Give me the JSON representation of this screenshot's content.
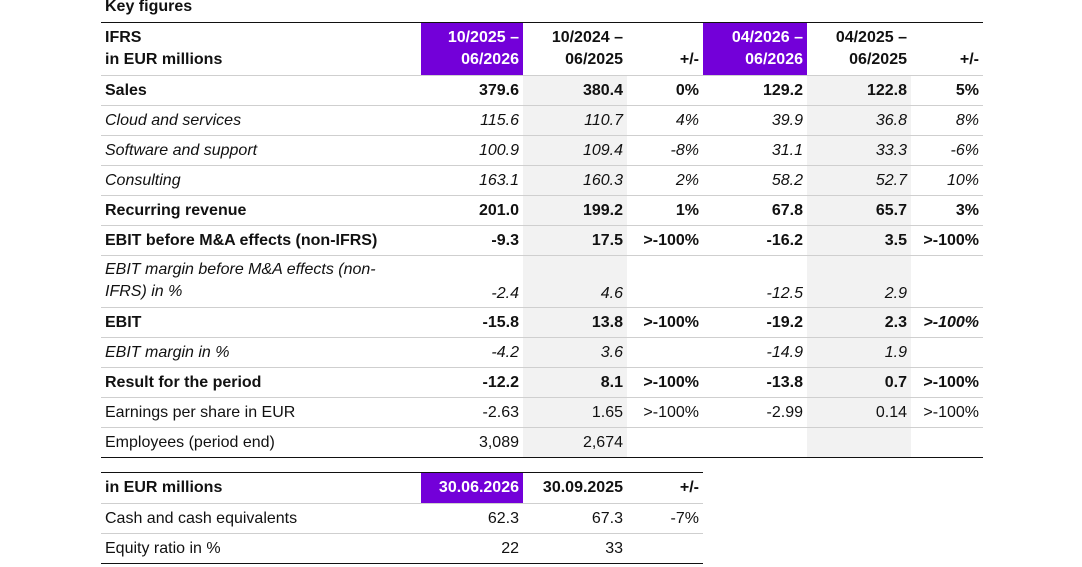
{
  "title": "Key figures",
  "key_figures": {
    "header": {
      "label_line1": "IFRS",
      "label_line2": "in EUR millions",
      "col1_line1": "10/2025 –",
      "col1_line2": "06/2026",
      "col2_line1": "10/2024 –",
      "col2_line2": "06/2025",
      "col3": "+/-",
      "col4_line1": "04/2026 –",
      "col4_line2": "06/2026",
      "col5_line1": "04/2025 –",
      "col5_line2": "06/2025",
      "col6": "+/-"
    },
    "rows": [
      {
        "label": "Sales",
        "v": [
          "379.6",
          "380.4",
          "0%",
          "129.2",
          "122.8",
          "5%"
        ]
      },
      {
        "label": "Cloud and services",
        "v": [
          "115.6",
          "110.7",
          "4%",
          "39.9",
          "36.8",
          "8%"
        ]
      },
      {
        "label": "Software and support",
        "v": [
          "100.9",
          "109.4",
          "-8%",
          "31.1",
          "33.3",
          "-6%"
        ]
      },
      {
        "label": "Consulting",
        "v": [
          "163.1",
          "160.3",
          "2%",
          "58.2",
          "52.7",
          "10%"
        ]
      },
      {
        "label": "Recurring revenue",
        "v": [
          "201.0",
          "199.2",
          "1%",
          "67.8",
          "65.7",
          "3%"
        ]
      },
      {
        "label": "EBIT before M&A effects (non-IFRS)",
        "v": [
          "-9.3",
          "17.5",
          ">-100%",
          "-16.2",
          "3.5",
          ">-100%"
        ]
      },
      {
        "label": "EBIT margin before M&A effects (non-IFRS) in %",
        "v": [
          "-2.4",
          "4.6",
          "",
          "-12.5",
          "2.9",
          ""
        ]
      },
      {
        "label": "EBIT",
        "v": [
          "-15.8",
          "13.8",
          ">-100%",
          "-19.2",
          "2.3",
          ">-100%"
        ]
      },
      {
        "label": "EBIT margin in %",
        "v": [
          "-4.2",
          "3.6",
          "",
          "-14.9",
          "1.9",
          ""
        ]
      },
      {
        "label": "Result for the period",
        "v": [
          "-12.2",
          "8.1",
          ">-100%",
          "-13.8",
          "0.7",
          ">-100%"
        ]
      },
      {
        "label": "Earnings per share in EUR",
        "v": [
          "-2.63",
          "1.65",
          ">-100%",
          "-2.99",
          "0.14",
          ">-100%"
        ]
      },
      {
        "label": "Employees (period end)",
        "v": [
          "3,089",
          "2,674",
          "",
          "",
          "",
          ""
        ]
      }
    ]
  },
  "balance": {
    "header": {
      "label": "in EUR millions",
      "col1": "30.06.2026",
      "col2": "30.09.2025",
      "col3": "+/-"
    },
    "rows": [
      {
        "label": "Cash and cash equivalents",
        "v": [
          "62.3",
          "67.3",
          "-7%"
        ]
      },
      {
        "label": "Equity ratio in %",
        "v": [
          "22",
          "33",
          ""
        ]
      }
    ]
  },
  "colors": {
    "highlight": "#7300d9",
    "shade": "#f2f2f2"
  }
}
